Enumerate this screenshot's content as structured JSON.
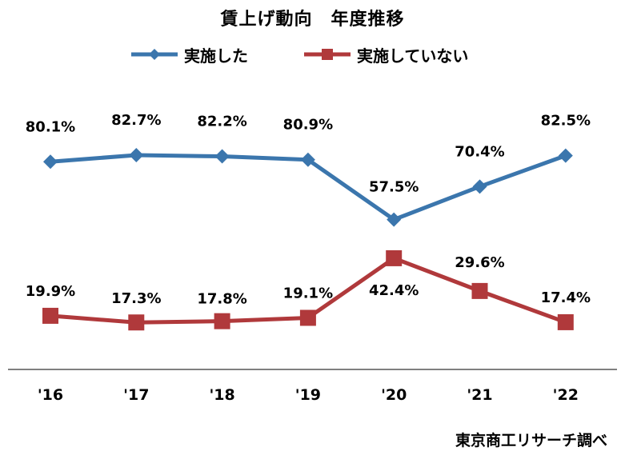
{
  "chart_data": {
    "type": "line",
    "title": "賃上げ動向　年度推移",
    "categories": [
      "'16",
      "'17",
      "'18",
      "'19",
      "'20",
      "'21",
      "'22"
    ],
    "series": [
      {
        "name": "実施した",
        "values": [
          80.1,
          82.7,
          82.2,
          80.9,
          57.5,
          70.4,
          82.5
        ],
        "labels": [
          "80.1%",
          "82.7%",
          "82.2%",
          "80.9%",
          "57.5%",
          "70.4%",
          "82.5%"
        ],
        "color": "#3b76ad",
        "marker": "diamond"
      },
      {
        "name": "実施していない",
        "values": [
          19.9,
          17.3,
          17.8,
          19.1,
          42.4,
          29.6,
          17.4
        ],
        "labels": [
          "19.9%",
          "17.3%",
          "17.8%",
          "19.1%",
          "42.4%",
          "29.6%",
          "17.4%"
        ],
        "color": "#b0393b",
        "marker": "square"
      }
    ],
    "xlabel": "",
    "ylabel": "",
    "grid": false,
    "legend_position": "top"
  },
  "source": "東京商工リサーチ調べ"
}
